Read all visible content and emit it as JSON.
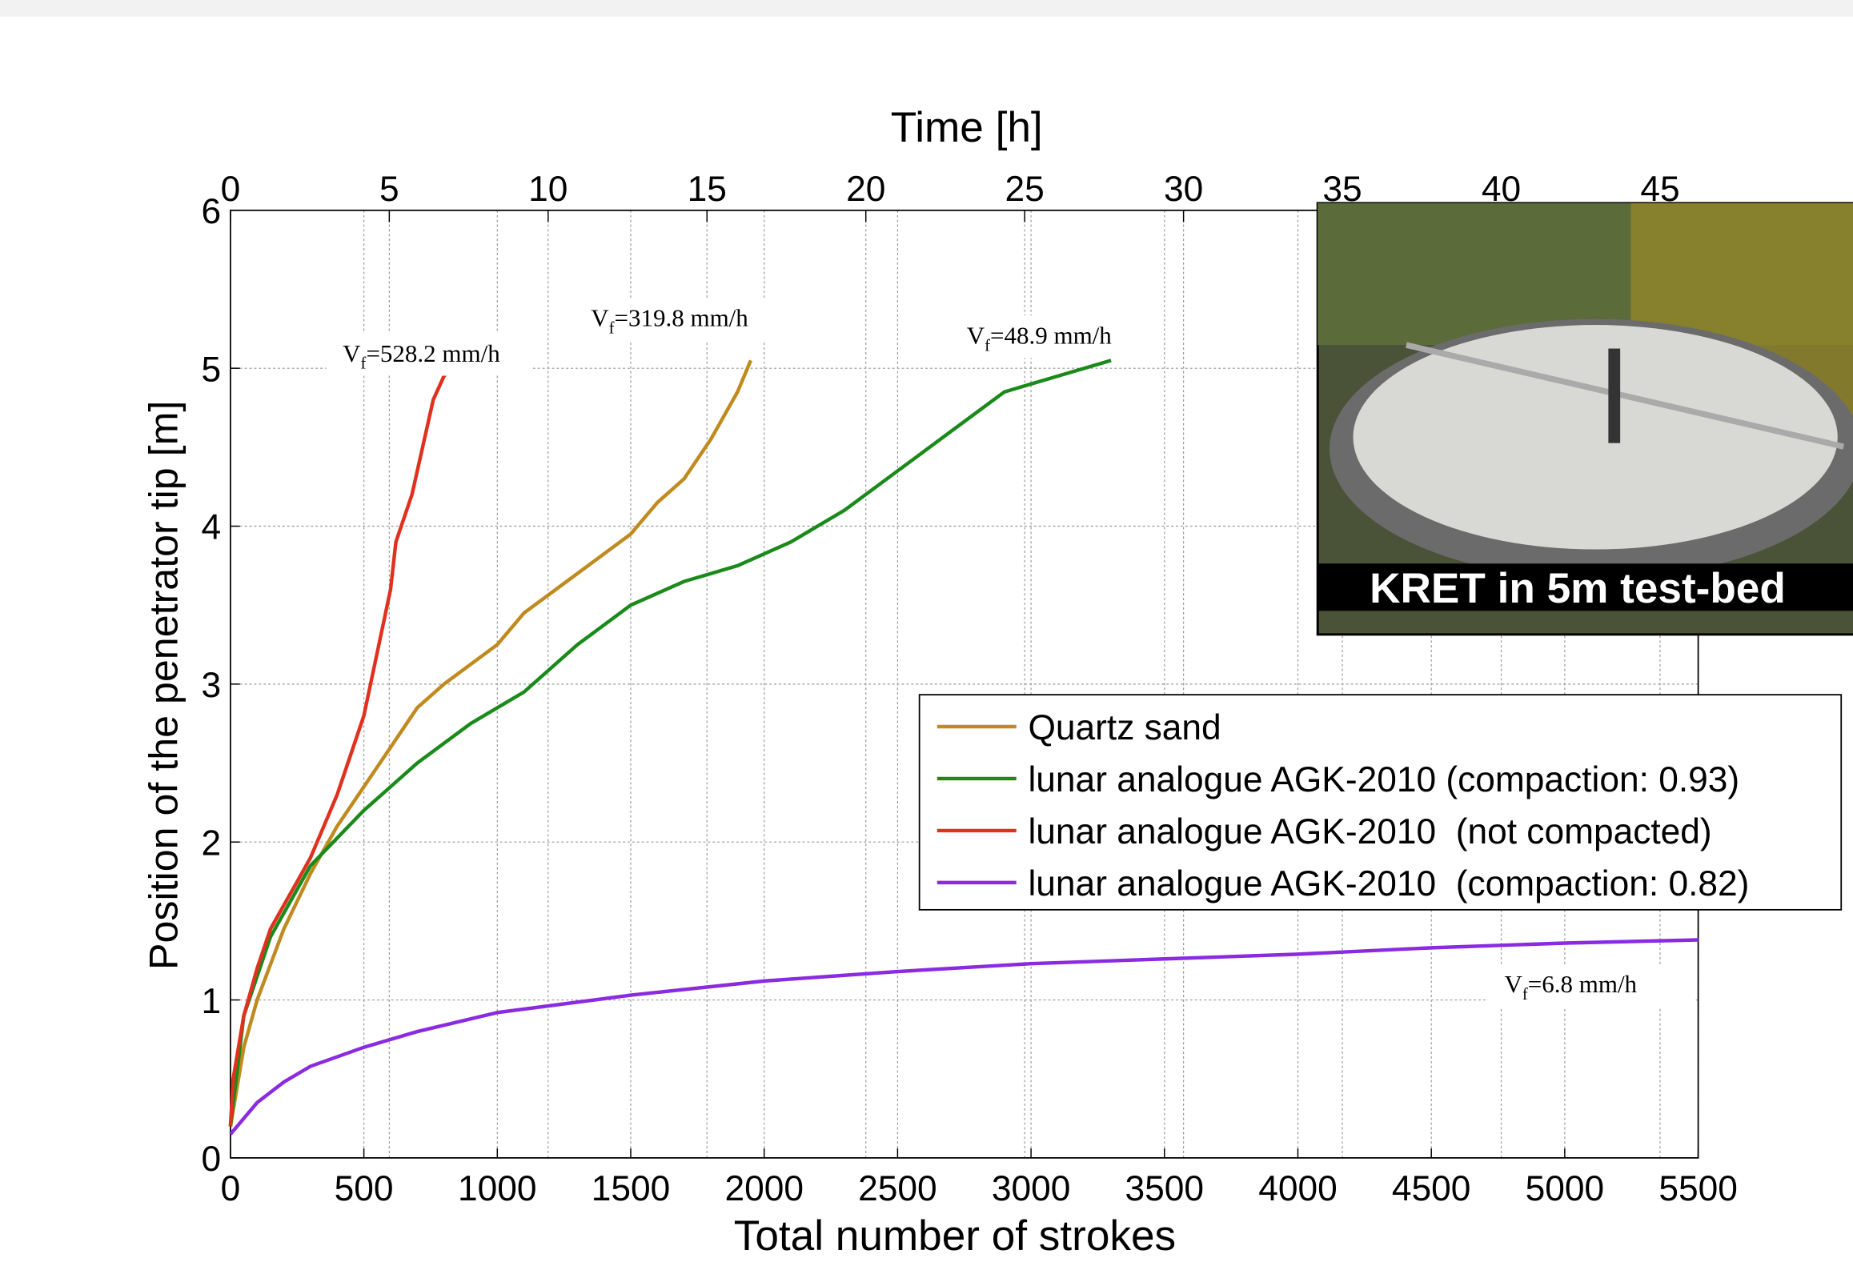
{
  "chart_data": {
    "type": "line",
    "xlabel": "Total number of strokes",
    "ylabel": "Position of the penetrator tip [m]",
    "x2label": "Time [h]",
    "xlim": [
      0,
      5500
    ],
    "xticks": [
      0,
      500,
      1000,
      1500,
      2000,
      2500,
      3000,
      3500,
      4000,
      4500,
      5000,
      5500
    ],
    "ylim": [
      0,
      6
    ],
    "yticks": [
      0,
      1,
      2,
      3,
      4,
      5,
      6
    ],
    "x2lim": [
      0,
      46.2
    ],
    "x2ticks": [
      0,
      5,
      10,
      15,
      20,
      25,
      30,
      35,
      40,
      45
    ],
    "grid": true,
    "series": [
      {
        "name": "Quartz sand",
        "color": "#c08a1e",
        "x": [
          0,
          50,
          100,
          200,
          300,
          400,
          500,
          600,
          700,
          800,
          1000,
          1100,
          1300,
          1500,
          1600,
          1700,
          1800,
          1900,
          1950
        ],
        "values": [
          0.2,
          0.7,
          1.0,
          1.45,
          1.8,
          2.1,
          2.35,
          2.6,
          2.85,
          3.0,
          3.25,
          3.45,
          3.7,
          3.95,
          4.15,
          4.3,
          4.55,
          4.85,
          5.05
        ]
      },
      {
        "name": "lunar analogue AGK-2010 (compaction: 0.93)",
        "color": "#1a8a1a",
        "x": [
          0,
          50,
          150,
          300,
          500,
          700,
          900,
          1100,
          1300,
          1500,
          1700,
          1900,
          2100,
          2300,
          2500,
          2700,
          2900,
          3100,
          3300
        ],
        "values": [
          0.2,
          0.9,
          1.4,
          1.85,
          2.2,
          2.5,
          2.75,
          2.95,
          3.25,
          3.5,
          3.65,
          3.75,
          3.9,
          4.1,
          4.35,
          4.6,
          4.85,
          4.95,
          5.05
        ]
      },
      {
        "name": "lunar analogue AGK-2010  (not compacted)",
        "color": "#e0301e",
        "x": [
          0,
          10,
          50,
          100,
          150,
          200,
          250,
          300,
          400,
          450,
          500,
          550,
          600,
          620,
          680,
          720,
          760,
          800,
          830
        ],
        "values": [
          0.2,
          0.5,
          0.9,
          1.2,
          1.45,
          1.6,
          1.75,
          1.9,
          2.3,
          2.55,
          2.8,
          3.2,
          3.6,
          3.9,
          4.2,
          4.5,
          4.8,
          4.95,
          5.0
        ]
      },
      {
        "name": "lunar analogue AGK-2010  (compaction: 0.82)",
        "color": "#8a2be2",
        "x": [
          0,
          100,
          200,
          300,
          500,
          700,
          1000,
          1500,
          2000,
          2500,
          3000,
          3500,
          4000,
          4500,
          5000,
          5500
        ],
        "values": [
          0.15,
          0.35,
          0.48,
          0.58,
          0.7,
          0.8,
          0.92,
          1.03,
          1.12,
          1.18,
          1.23,
          1.26,
          1.29,
          1.33,
          1.36,
          1.38
        ]
      }
    ],
    "annotations": [
      {
        "base": "V",
        "sub": "f",
        "text": "=528.2 mm/h"
      },
      {
        "base": "V",
        "sub": "f",
        "text": "=319.8 mm/h"
      },
      {
        "base": "V",
        "sub": "f",
        "text": "=48.9 mm/h"
      },
      {
        "base": "V",
        "sub": "f",
        "text": "=6.8 mm/h"
      }
    ],
    "inset_caption": "KRET in 5m test-bed"
  }
}
